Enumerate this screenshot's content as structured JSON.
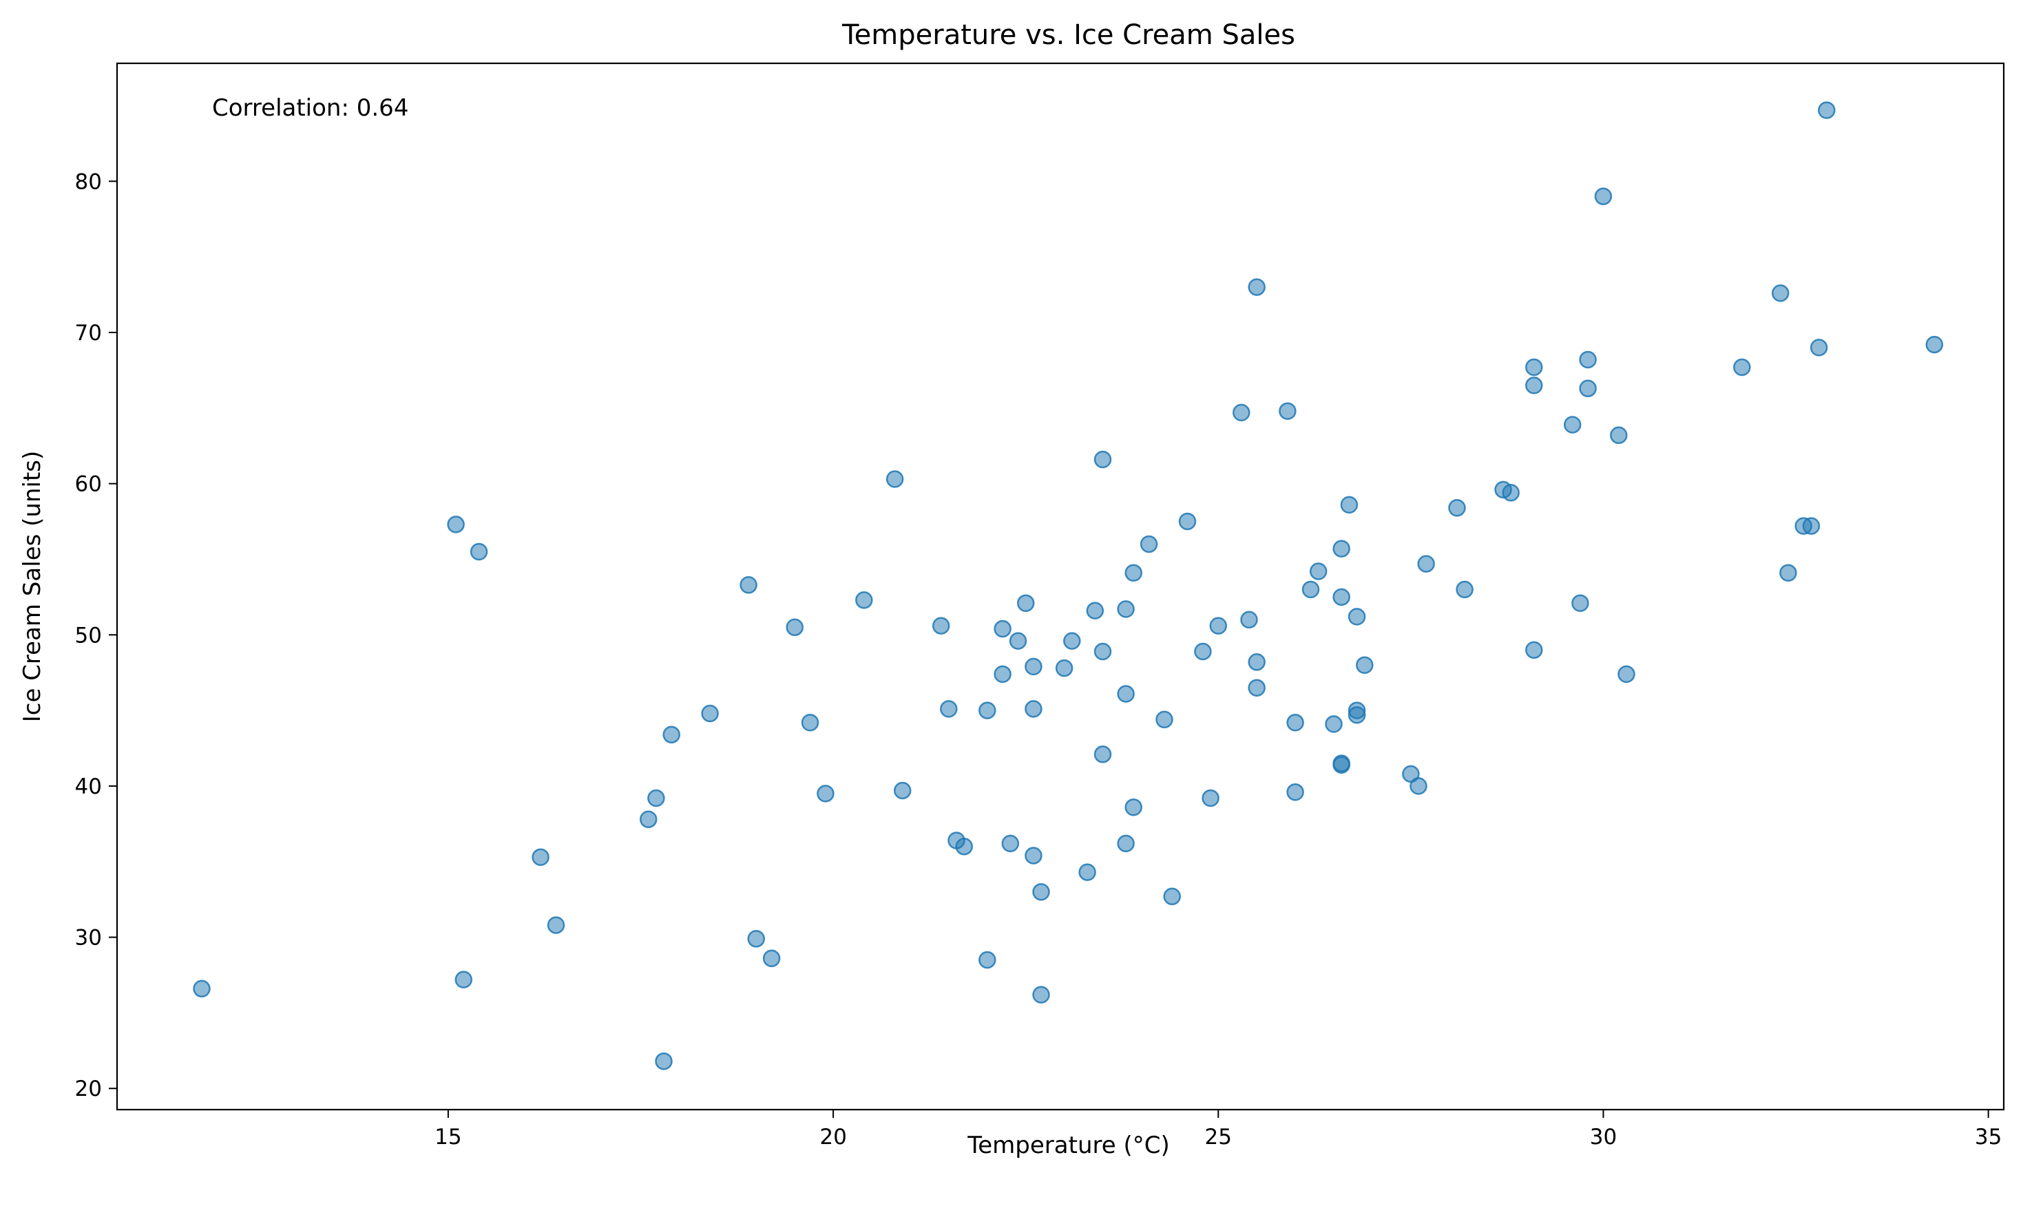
{
  "chart_data": {
    "type": "scatter",
    "title": "Temperature vs. Ice Cream Sales",
    "xlabel": "Temperature (°C)",
    "ylabel": "Ice Cream Sales (units)",
    "xlim": [
      10.7,
      35.2
    ],
    "ylim": [
      18.6,
      87.8
    ],
    "xticks": [
      15,
      20,
      25,
      30,
      35
    ],
    "yticks": [
      20,
      30,
      40,
      50,
      60,
      70,
      80
    ],
    "grid": false,
    "annotation": "Correlation: 0.64",
    "color": "#1f77b4",
    "points": [
      {
        "x": 11.8,
        "y": 26.6
      },
      {
        "x": 15.1,
        "y": 57.3
      },
      {
        "x": 15.2,
        "y": 27.2
      },
      {
        "x": 15.4,
        "y": 55.5
      },
      {
        "x": 16.2,
        "y": 35.3
      },
      {
        "x": 16.4,
        "y": 30.8
      },
      {
        "x": 17.6,
        "y": 37.8
      },
      {
        "x": 17.7,
        "y": 39.2
      },
      {
        "x": 17.8,
        "y": 21.8
      },
      {
        "x": 17.9,
        "y": 43.4
      },
      {
        "x": 18.4,
        "y": 44.8
      },
      {
        "x": 18.9,
        "y": 53.3
      },
      {
        "x": 19.0,
        "y": 29.9
      },
      {
        "x": 19.2,
        "y": 28.6
      },
      {
        "x": 19.5,
        "y": 50.5
      },
      {
        "x": 19.7,
        "y": 44.2
      },
      {
        "x": 19.9,
        "y": 39.5
      },
      {
        "x": 20.4,
        "y": 52.3
      },
      {
        "x": 20.8,
        "y": 60.3
      },
      {
        "x": 20.9,
        "y": 39.7
      },
      {
        "x": 21.4,
        "y": 50.6
      },
      {
        "x": 21.5,
        "y": 45.1
      },
      {
        "x": 21.6,
        "y": 36.4
      },
      {
        "x": 21.7,
        "y": 36.0
      },
      {
        "x": 22.0,
        "y": 45.0
      },
      {
        "x": 22.0,
        "y": 28.5
      },
      {
        "x": 22.2,
        "y": 47.4
      },
      {
        "x": 22.2,
        "y": 50.4
      },
      {
        "x": 22.3,
        "y": 36.2
      },
      {
        "x": 22.4,
        "y": 49.6
      },
      {
        "x": 22.5,
        "y": 52.1
      },
      {
        "x": 22.6,
        "y": 35.4
      },
      {
        "x": 22.6,
        "y": 47.9
      },
      {
        "x": 22.6,
        "y": 45.1
      },
      {
        "x": 22.7,
        "y": 33.0
      },
      {
        "x": 22.7,
        "y": 26.2
      },
      {
        "x": 23.0,
        "y": 47.8
      },
      {
        "x": 23.1,
        "y": 49.6
      },
      {
        "x": 23.3,
        "y": 34.3
      },
      {
        "x": 23.4,
        "y": 51.6
      },
      {
        "x": 23.5,
        "y": 48.9
      },
      {
        "x": 23.5,
        "y": 61.6
      },
      {
        "x": 23.5,
        "y": 42.1
      },
      {
        "x": 23.8,
        "y": 51.7
      },
      {
        "x": 23.8,
        "y": 46.1
      },
      {
        "x": 23.8,
        "y": 36.2
      },
      {
        "x": 23.9,
        "y": 38.6
      },
      {
        "x": 23.9,
        "y": 54.1
      },
      {
        "x": 24.1,
        "y": 56.0
      },
      {
        "x": 24.3,
        "y": 44.4
      },
      {
        "x": 24.4,
        "y": 32.7
      },
      {
        "x": 24.6,
        "y": 57.5
      },
      {
        "x": 24.8,
        "y": 48.9
      },
      {
        "x": 24.9,
        "y": 39.2
      },
      {
        "x": 25.0,
        "y": 50.6
      },
      {
        "x": 25.3,
        "y": 64.7
      },
      {
        "x": 25.4,
        "y": 51.0
      },
      {
        "x": 25.5,
        "y": 48.2
      },
      {
        "x": 25.5,
        "y": 46.5
      },
      {
        "x": 25.5,
        "y": 73.0
      },
      {
        "x": 25.9,
        "y": 64.8
      },
      {
        "x": 26.0,
        "y": 39.6
      },
      {
        "x": 26.0,
        "y": 44.2
      },
      {
        "x": 26.2,
        "y": 53.0
      },
      {
        "x": 26.3,
        "y": 54.2
      },
      {
        "x": 26.5,
        "y": 44.1
      },
      {
        "x": 26.6,
        "y": 41.5
      },
      {
        "x": 26.6,
        "y": 55.7
      },
      {
        "x": 26.6,
        "y": 52.5
      },
      {
        "x": 26.6,
        "y": 41.4
      },
      {
        "x": 26.7,
        "y": 58.6
      },
      {
        "x": 26.8,
        "y": 45.0
      },
      {
        "x": 26.8,
        "y": 44.7
      },
      {
        "x": 26.8,
        "y": 51.2
      },
      {
        "x": 26.9,
        "y": 48.0
      },
      {
        "x": 27.5,
        "y": 40.8
      },
      {
        "x": 27.6,
        "y": 40.0
      },
      {
        "x": 27.7,
        "y": 54.7
      },
      {
        "x": 28.1,
        "y": 58.4
      },
      {
        "x": 28.2,
        "y": 53.0
      },
      {
        "x": 28.7,
        "y": 59.6
      },
      {
        "x": 28.8,
        "y": 59.4
      },
      {
        "x": 29.1,
        "y": 67.7
      },
      {
        "x": 29.1,
        "y": 66.5
      },
      {
        "x": 29.1,
        "y": 49.0
      },
      {
        "x": 29.6,
        "y": 63.9
      },
      {
        "x": 29.7,
        "y": 52.1
      },
      {
        "x": 29.8,
        "y": 68.2
      },
      {
        "x": 29.8,
        "y": 66.3
      },
      {
        "x": 30.0,
        "y": 79.0
      },
      {
        "x": 30.2,
        "y": 63.2
      },
      {
        "x": 30.3,
        "y": 47.4
      },
      {
        "x": 31.8,
        "y": 67.7
      },
      {
        "x": 32.3,
        "y": 72.6
      },
      {
        "x": 32.4,
        "y": 54.1
      },
      {
        "x": 32.6,
        "y": 57.2
      },
      {
        "x": 32.7,
        "y": 57.2
      },
      {
        "x": 32.8,
        "y": 69.0
      },
      {
        "x": 32.9,
        "y": 84.7
      },
      {
        "x": 34.3,
        "y": 69.2
      }
    ]
  }
}
